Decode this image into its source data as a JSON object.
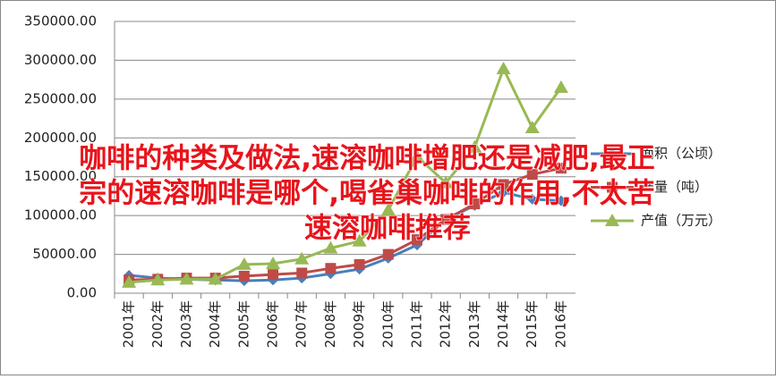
{
  "chart_data": {
    "type": "line",
    "categories": [
      "2001年",
      "2002年",
      "2003年",
      "2004年",
      "2005年",
      "2006年",
      "2007年",
      "2008年",
      "2009年",
      "2010年",
      "2011年",
      "2012年",
      "2013年",
      "2014年",
      "2015年",
      "2016年"
    ],
    "series": [
      {
        "name": "面积（公顷）",
        "color": "#4a7ebb",
        "marker": "diamond",
        "values": [
          23000,
          19500,
          18000,
          17000,
          16000,
          17000,
          19500,
          25000,
          31000,
          45000,
          62000,
          95000,
          113000,
          130000,
          121000,
          119000
        ]
      },
      {
        "name": "产量（吨）",
        "color": "#be4b48",
        "marker": "square",
        "values": [
          17000,
          18000,
          19500,
          19500,
          22000,
          24000,
          26000,
          32000,
          37000,
          50000,
          69000,
          95000,
          115000,
          140000,
          153000,
          161000
        ]
      },
      {
        "name": "产值（万元）",
        "color": "#98b954",
        "marker": "triangle",
        "values": [
          14000,
          17000,
          18000,
          18000,
          37000,
          38000,
          44000,
          58000,
          67000,
          107000,
          176000,
          142000,
          188000,
          289000,
          213000,
          265000
        ]
      }
    ],
    "ylim": [
      0,
      350000
    ],
    "yticks": [
      {
        "value": 0,
        "label": "0.00"
      },
      {
        "value": 50000,
        "label": "50000.00"
      },
      {
        "value": 100000,
        "label": "100000.00"
      },
      {
        "value": 150000,
        "label": "150000.00"
      },
      {
        "value": 200000,
        "label": "200000.00"
      },
      {
        "value": 250000,
        "label": "250000.00"
      },
      {
        "value": 300000,
        "label": "300000.00"
      },
      {
        "value": 350000,
        "label": "350000.00"
      }
    ],
    "grid": true,
    "legend": "right",
    "overlay_text": [
      "咖啡的种类及做法,速溶咖啡增肥还是减肥,最正",
      "宗的速溶咖啡是哪个,喝雀巢咖啡的作用,不太苦",
      "速溶咖啡推荐"
    ]
  }
}
